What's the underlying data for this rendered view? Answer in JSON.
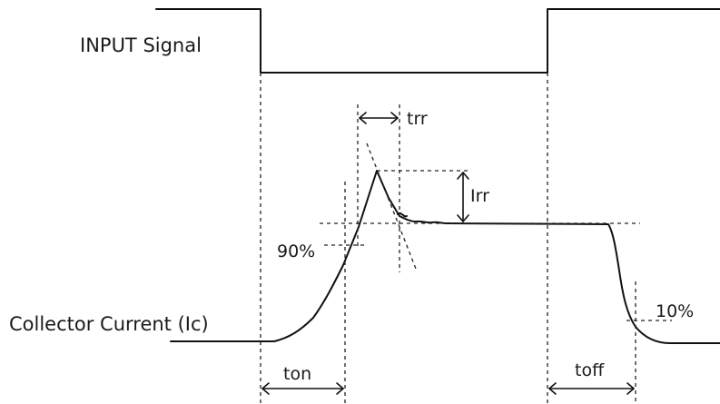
{
  "labels": {
    "input_signal": "INPUT Signal",
    "collector_current": "Collector Current (Ic)",
    "trr": "trr",
    "irr": "Irr",
    "pct90": "90%",
    "pct10": "10%",
    "ton": "ton",
    "toff": "toff"
  }
}
